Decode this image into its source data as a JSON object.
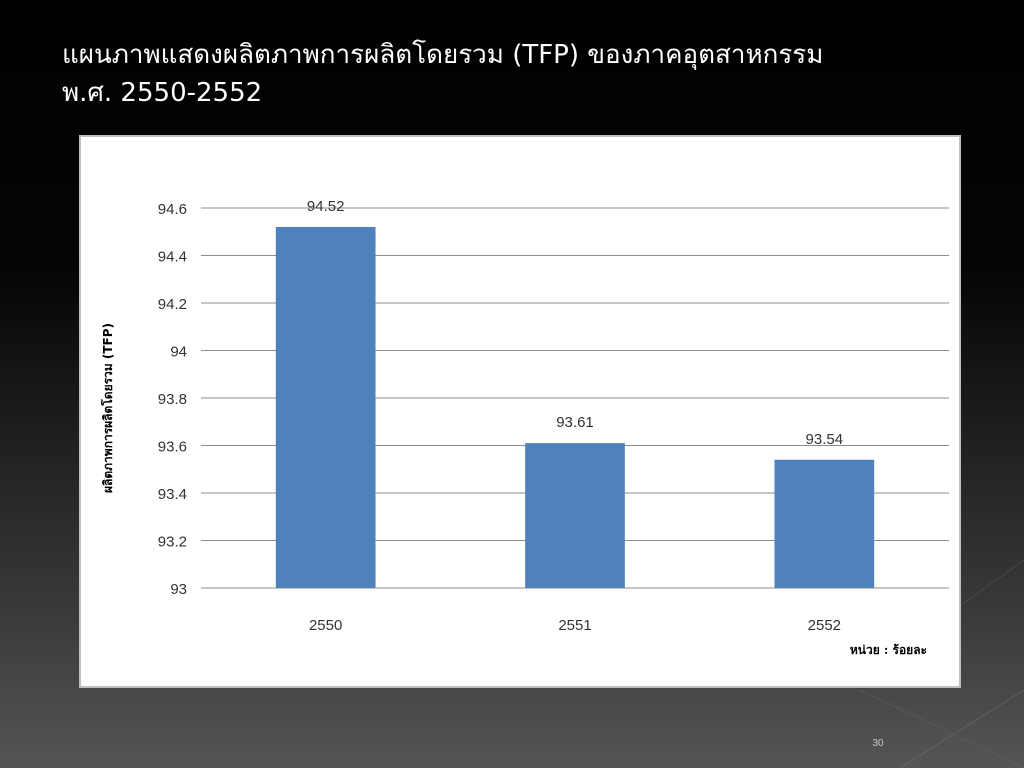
{
  "slide": {
    "title_line1": "แผนภาพแสดงผลิตภาพการผลิตโดยรวม (TFP) ของภาคอุตสาหกรรม",
    "title_line2": "พ.ศ. 2550-2552",
    "page_number": "30"
  },
  "chart_data": {
    "type": "bar",
    "categories": [
      "2550",
      "2551",
      "2552"
    ],
    "values": [
      94.52,
      93.61,
      93.54
    ],
    "data_labels": [
      "94.52",
      "93.61",
      "93.54"
    ],
    "title": "",
    "xlabel": "",
    "ylabel": "ผลิตภาพการผลิตโดยรวม (TFP)",
    "unit_note": "หน่วย : ร้อยละ",
    "ylim": [
      93,
      94.6
    ],
    "yticks": [
      93,
      93.2,
      93.4,
      93.6,
      93.8,
      94,
      94.2,
      94.4,
      94.6
    ],
    "ytick_labels": [
      "93",
      "93.2",
      "93.4",
      "93.6",
      "93.8",
      "94",
      "94.2",
      "94.4",
      "94.6"
    ],
    "grid": true,
    "bar_color": "#4f81bd",
    "grid_color": "#8c8c8c"
  }
}
